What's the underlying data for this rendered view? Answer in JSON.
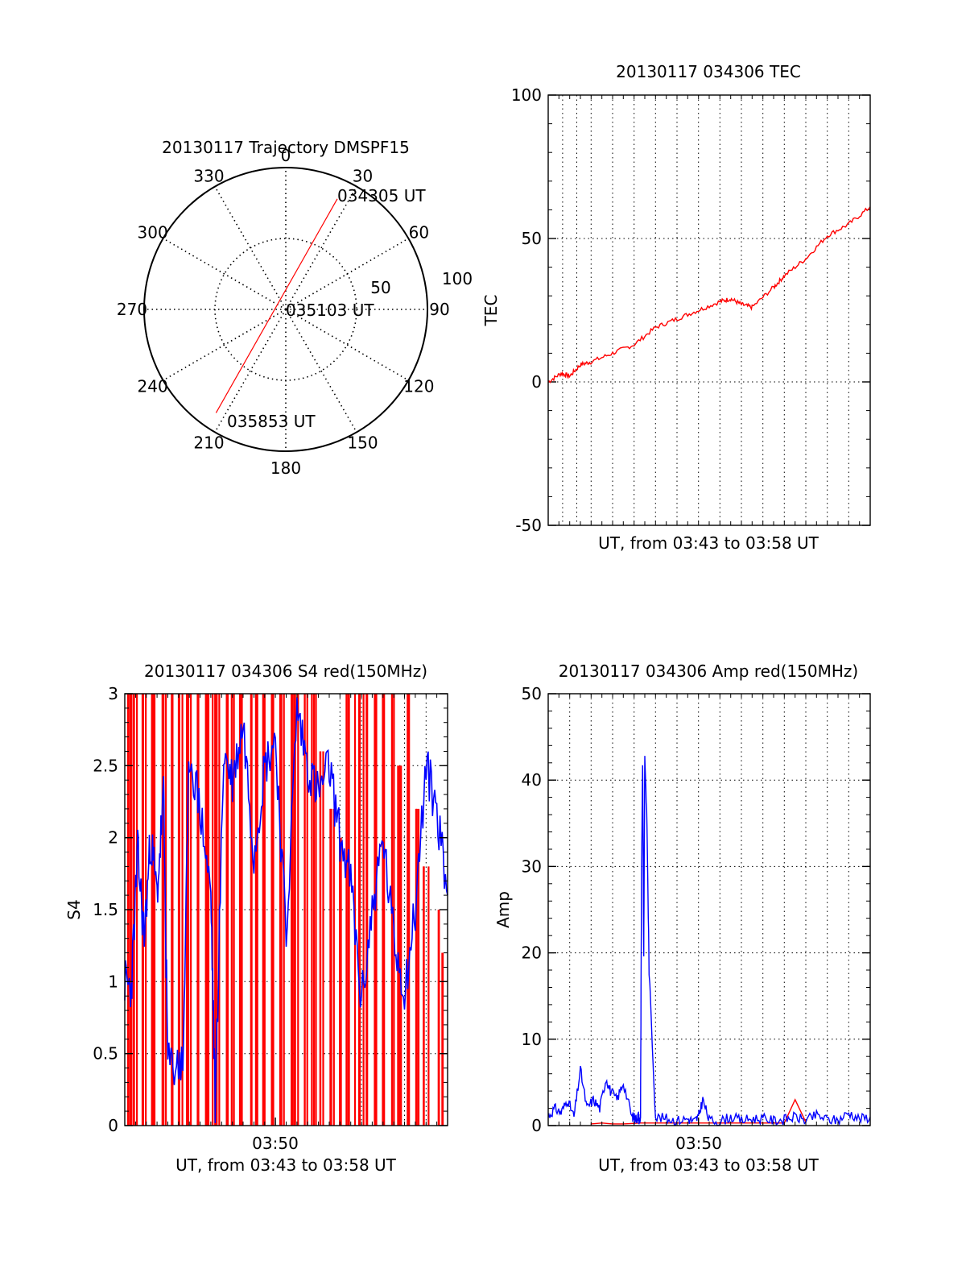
{
  "colors": {
    "red": "#ff0000",
    "blue": "#0000ff",
    "black": "#000000"
  },
  "chart_data": [
    {
      "type": "polar",
      "title": "20130117 Trajectory DMSPF15",
      "angle_labels": [
        "0",
        "30",
        "60",
        "90",
        "120",
        "150",
        "180",
        "210",
        "240",
        "270",
        "300",
        "330"
      ],
      "angle_values": [
        0,
        30,
        60,
        90,
        120,
        150,
        180,
        210,
        240,
        270,
        300,
        330
      ],
      "radial_labels": [
        "50",
        "100"
      ],
      "radial_values": [
        50,
        100
      ],
      "rlim": [
        0,
        100
      ],
      "annotations": [
        "034305 UT",
        "035103 UT",
        "035853 UT"
      ],
      "track": {
        "start": {
          "azimuth": 25,
          "elevation_radius": 86,
          "label": "034305 UT"
        },
        "mid": {
          "azimuth": 0,
          "elevation_radius": 0,
          "label": "035103 UT"
        },
        "end": {
          "azimuth": 214,
          "elevation_radius": 88,
          "label": "035853 UT"
        }
      },
      "series_color": "red"
    },
    {
      "type": "line",
      "title": "20130117 034306 TEC",
      "xlabel": "UT, from 03:43 to 03:58 UT",
      "ylabel": "TEC",
      "xlim": [
        0,
        15
      ],
      "ylim": [
        -50,
        100
      ],
      "yticks": [
        "-50",
        "0",
        "50",
        "100"
      ],
      "ytick_values": [
        -50,
        0,
        50,
        100
      ],
      "x_gridlines": [
        0.67,
        1.33,
        2.0,
        3.0,
        4.0,
        5.0,
        6.0,
        7.0,
        8.0,
        9.0,
        10.0,
        11.0,
        12.0,
        13.0,
        14.0
      ],
      "series": [
        {
          "color": "red",
          "x": [
            0,
            0.6,
            1.0,
            1.5,
            2.0,
            3.0,
            4.0,
            5.0,
            6.0,
            7.0,
            8.0,
            8.5,
            9.0,
            9.5,
            10.5,
            11.0,
            12.0,
            13.0,
            14.0,
            15.0
          ],
          "y": [
            0,
            3,
            2,
            6,
            7,
            10,
            13,
            19,
            22,
            25,
            28,
            29,
            27,
            26,
            33,
            37,
            43,
            51,
            55,
            61
          ]
        }
      ]
    },
    {
      "type": "line",
      "title": "20130117 034306 S4 red(150MHz)",
      "xlabel": "UT, from 03:43 to 03:58 UT",
      "ylabel": "S4",
      "xticks": [
        "03:50"
      ],
      "xtick_values": [
        7.0
      ],
      "xlim": [
        0,
        15
      ],
      "ylim": [
        0,
        3
      ],
      "yticks": [
        "0",
        "0.5",
        "1",
        "1.5",
        "2",
        "2.5",
        "3"
      ],
      "ytick_values": [
        0,
        0.5,
        1,
        1.5,
        2,
        2.5,
        3
      ],
      "x_gridlines": [
        10.0,
        11.0,
        12.0,
        13.0,
        14.0
      ],
      "series": [
        {
          "color": "red",
          "x": [
            0.2,
            0.5,
            0.9,
            1.3,
            1.8,
            2.2,
            2.6,
            3.0,
            3.4,
            3.8,
            4.0,
            4.3,
            4.7,
            5.0,
            5.4,
            5.8,
            6.1,
            6.5,
            6.9,
            7.3,
            7.7,
            8.0,
            8.4,
            8.8,
            9.2,
            9.6,
            10.0,
            10.4,
            10.8,
            11.2,
            11.6,
            12.0,
            12.4,
            12.8,
            13.2,
            13.6,
            14.0,
            14.5,
            14.8
          ],
          "y": [
            3,
            3,
            3,
            3,
            3,
            3,
            3,
            3,
            3,
            3,
            3,
            3,
            3,
            3,
            3,
            3,
            3,
            3,
            3,
            3,
            3,
            3,
            3,
            3,
            2.6,
            2.2,
            2.0,
            3,
            3,
            3,
            3,
            3,
            3,
            2.5,
            3,
            2.2,
            1.8,
            1.5,
            1.2
          ]
        },
        {
          "color": "blue",
          "x": [
            0.0,
            0.3,
            0.6,
            0.9,
            1.2,
            1.5,
            1.8,
            2.0,
            2.5,
            2.7,
            3.0,
            3.5,
            4.0,
            4.2,
            4.6,
            5.0,
            5.5,
            6.0,
            6.5,
            7.0,
            7.5,
            8.0,
            8.5,
            9.0,
            9.5,
            10.0,
            10.5,
            11.0,
            11.5,
            12.0,
            12.5,
            13.0,
            13.5,
            14.0,
            14.5,
            15.0
          ],
          "y": [
            1.0,
            0.95,
            1.9,
            1.3,
            2.0,
            1.6,
            2.3,
            0.42,
            0.42,
            0.42,
            2.6,
            2.2,
            1.6,
            0.15,
            2.6,
            2.4,
            2.8,
            1.9,
            2.5,
            2.7,
            1.3,
            2.9,
            2.5,
            2.3,
            2.5,
            2.0,
            1.7,
            0.85,
            1.5,
            2.0,
            1.3,
            0.95,
            1.5,
            2.5,
            2.2,
            1.6
          ]
        }
      ]
    },
    {
      "type": "line",
      "title": "20130117 034306 Amp red(150MHz)",
      "xlabel": "UT, from 03:43 to 03:58 UT",
      "ylabel": "Amp",
      "xticks": [
        "03:50"
      ],
      "xtick_values": [
        7.0
      ],
      "xlim": [
        0,
        15
      ],
      "ylim": [
        0,
        50
      ],
      "yticks": [
        "0",
        "10",
        "20",
        "30",
        "40",
        "50"
      ],
      "ytick_values": [
        0,
        10,
        20,
        30,
        40,
        50
      ],
      "x_gridlines": [
        1.0,
        2.0,
        3.0,
        4.0,
        5.0,
        6.0,
        7.0,
        8.0,
        9.0,
        10.0,
        11.0,
        12.0,
        13.0,
        14.0
      ],
      "series": [
        {
          "color": "blue",
          "x": [
            0,
            0.3,
            0.6,
            0.9,
            1.2,
            1.5,
            1.8,
            2.1,
            2.4,
            2.7,
            2.9,
            3.2,
            3.5,
            3.9,
            4.0,
            4.1,
            4.2,
            4.25,
            4.3,
            4.35,
            4.4,
            4.45,
            4.5,
            4.6,
            4.7,
            5.0,
            5.5,
            6.0,
            6.5,
            6.8,
            7.0,
            7.2,
            7.5,
            8.0,
            8.5,
            9.0,
            9.5,
            10.0,
            10.5,
            11.0,
            11.5,
            12.0,
            12.5,
            13.0,
            13.5,
            14.0,
            14.5,
            15.0
          ],
          "y": [
            1,
            2,
            1.5,
            3,
            1,
            6.5,
            2,
            3,
            2,
            5.5,
            4,
            3,
            5,
            1,
            1,
            0.8,
            1.2,
            0.5,
            1,
            30,
            42,
            20,
            43,
            35,
            18,
            1,
            0.8,
            0.6,
            0.8,
            0.5,
            1,
            3,
            0.6,
            0.5,
            1,
            0.6,
            0.8,
            0.8,
            0.6,
            0.7,
            1,
            0.6,
            1.2,
            0.7,
            0.6,
            1.5,
            0.8,
            1
          ]
        },
        {
          "color": "red",
          "x": [
            2.0,
            2.5,
            3.0,
            3.5,
            4.3,
            10.0,
            11.0,
            11.5,
            12.0
          ],
          "y": [
            0.2,
            0.3,
            0.2,
            0.2,
            0.3,
            0.3,
            0.3,
            3.0,
            0.4
          ]
        }
      ]
    }
  ]
}
